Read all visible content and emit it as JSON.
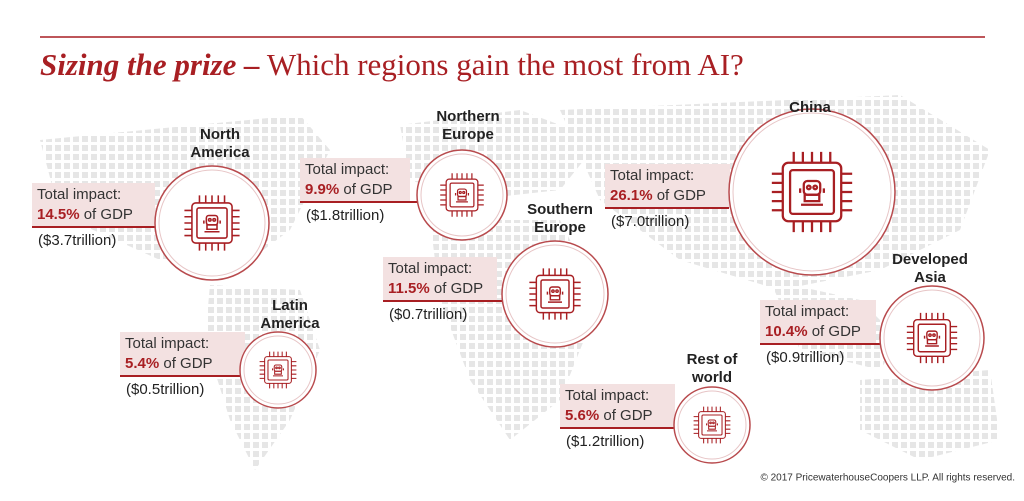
{
  "header": {
    "title_bold": "Sizing the prize –",
    "title_rest": "Which regions gain the most from AI?"
  },
  "regions": [
    {
      "name": [
        "North",
        "America"
      ],
      "label": "Total impact:",
      "percent": "14.5%",
      "suffix": "of GDP",
      "amount": "($3.7trillion)"
    },
    {
      "name": [
        "Northern",
        "Europe"
      ],
      "label": "Total impact:",
      "percent": "9.9%",
      "suffix": "of GDP",
      "amount": "($1.8trillion)"
    },
    {
      "name": [
        "China"
      ],
      "label": "Total impact:",
      "percent": "26.1%",
      "suffix": "of GDP",
      "amount": "($7.0trillion)"
    },
    {
      "name": [
        "Southern",
        "Europe"
      ],
      "label": "Total impact:",
      "percent": "11.5%",
      "suffix": "of GDP",
      "amount": "($0.7trillion)"
    },
    {
      "name": [
        "Latin",
        "America"
      ],
      "label": "Total impact:",
      "percent": "5.4%",
      "suffix": "of GDP",
      "amount": "($0.5trillion)"
    },
    {
      "name": [
        "Developed",
        "Asia"
      ],
      "label": "Total impact:",
      "percent": "10.4%",
      "suffix": "of GDP",
      "amount": "($0.9trillion)"
    },
    {
      "name": [
        "Rest of",
        "world"
      ],
      "label": "Total impact:",
      "percent": "5.6%",
      "suffix": "of GDP",
      "amount": "($1.2trillion)"
    }
  ],
  "footer": {
    "copyright": "© 2017 PricewaterhouseCoopers LLP. All rights reserved."
  }
}
